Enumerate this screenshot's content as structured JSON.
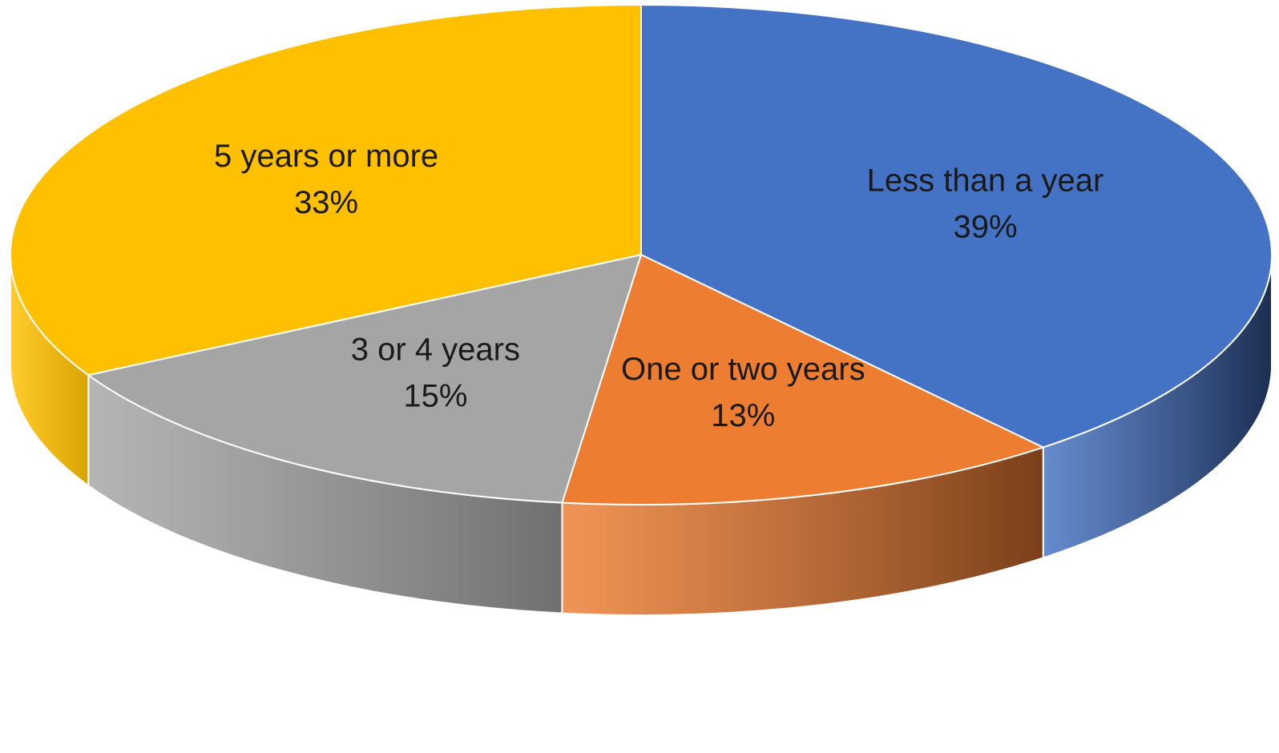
{
  "chart_data": {
    "type": "pie",
    "title": "",
    "style": "3d",
    "legend": "none",
    "data_label_format": "category and percent",
    "start": "12 o'clock, clockwise",
    "slices": [
      {
        "label": "Less than a year",
        "value": 39,
        "value_label": "39%",
        "color": "#4472C4",
        "side_color": "#1C2E52"
      },
      {
        "label": "One or two years",
        "value": 13,
        "value_label": "13%",
        "color": "#ED7D31",
        "side_color": "#7A3F1A"
      },
      {
        "label": "3 or 4 years",
        "value": 15,
        "value_label": "15%",
        "color": "#A5A5A5",
        "side_color": "#707070"
      },
      {
        "label": "5 years or more",
        "value": 33,
        "value_label": "33%",
        "color": "#FFC000",
        "side_color": "#D9A300"
      }
    ]
  }
}
